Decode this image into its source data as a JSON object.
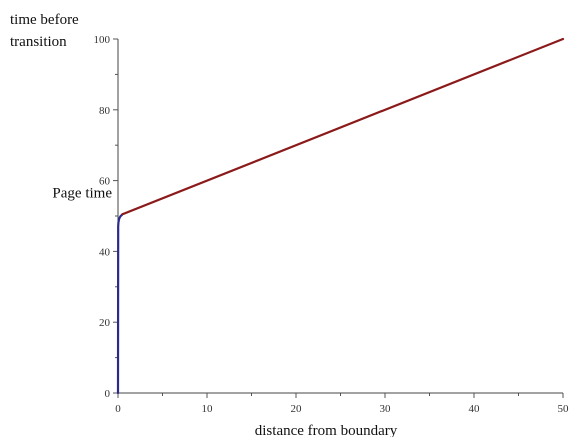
{
  "chart_data": {
    "type": "line",
    "title": "",
    "xlabel": "distance from boundary",
    "ylabel": "time before transition",
    "ylabel_lines": [
      "time before",
      "transition"
    ],
    "xlim": [
      0,
      50
    ],
    "ylim": [
      0,
      100
    ],
    "x_ticks": [
      0,
      10,
      20,
      30,
      40,
      50
    ],
    "x_tick_labels": [
      "0",
      "10",
      "20",
      "30",
      "40",
      "50"
    ],
    "y_ticks": [
      0,
      20,
      40,
      60,
      80,
      100
    ],
    "y_tick_labels": [
      "0",
      "20",
      "40",
      "60",
      "80",
      "100"
    ],
    "grid": false,
    "annotations": [
      {
        "text": "Page time",
        "y": 49
      }
    ],
    "series": [
      {
        "color": "#2b2a8a",
        "x": [
          0,
          0.02,
          0.05,
          0.1,
          0.15,
          0.2,
          0.25,
          0.3,
          0.4,
          0.5
        ],
        "y": [
          0,
          47,
          48.2,
          48.9,
          49.3,
          49.6,
          49.8,
          50.0,
          50.2,
          50.5
        ]
      },
      {
        "color": "#8b1a1a",
        "x": [
          0.5,
          50
        ],
        "y": [
          50.5,
          100
        ]
      }
    ]
  }
}
